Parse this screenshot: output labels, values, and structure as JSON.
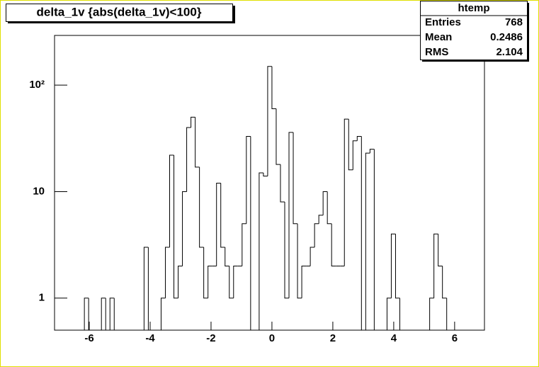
{
  "chart_data": {
    "type": "histogram",
    "title": "delta_1v {abs(delta_1v)<100}",
    "stats": {
      "title": "htemp",
      "rows": [
        [
          "Entries",
          "768"
        ],
        [
          "Mean",
          "0.2486"
        ],
        [
          "RMS",
          "2.104"
        ]
      ]
    },
    "bins": [
      -7.14,
      -7.0,
      -6.86,
      -6.72,
      -6.58,
      -6.44,
      -6.3,
      -6.16,
      -6.02,
      -5.88,
      -5.74,
      -5.6,
      -5.46,
      -5.32,
      -5.18,
      -5.04,
      -4.9,
      -4.76,
      -4.62,
      -4.48,
      -4.34,
      -4.2,
      -4.06,
      -3.92,
      -3.78,
      -3.64,
      -3.5,
      -3.36,
      -3.22,
      -3.08,
      -2.94,
      -2.8,
      -2.66,
      -2.52,
      -2.38,
      -2.24,
      -2.1,
      -1.96,
      -1.82,
      -1.68,
      -1.54,
      -1.4,
      -1.26,
      -1.12,
      -0.98,
      -0.84,
      -0.7,
      -0.56,
      -0.42,
      -0.28,
      -0.14,
      0,
      0.14,
      0.28,
      0.42,
      0.56,
      0.7,
      0.84,
      0.98,
      1.12,
      1.26,
      1.4,
      1.54,
      1.68,
      1.82,
      1.96,
      2.1,
      2.24,
      2.38,
      2.52,
      2.66,
      2.8,
      2.94,
      3.08,
      3.22,
      3.36,
      3.5,
      3.64,
      3.78,
      3.92,
      4.06,
      4.2,
      4.34,
      4.48,
      4.62,
      4.76,
      4.9,
      5.04,
      5.18,
      5.32,
      5.46,
      5.6,
      5.74,
      5.88,
      6.02,
      6.16,
      6.3,
      6.44,
      6.58,
      6.72,
      6.86
    ],
    "values": [
      0,
      0,
      0,
      0,
      0,
      0,
      0,
      1,
      0,
      0,
      0,
      1,
      0,
      1,
      0,
      0,
      0,
      0,
      0,
      0,
      0,
      3,
      0,
      0,
      0,
      1,
      3,
      22,
      1,
      2,
      10,
      40,
      50,
      17,
      3,
      1,
      2,
      2,
      12,
      3,
      2,
      1,
      2,
      2,
      5,
      33,
      0,
      0,
      15,
      14,
      150,
      60,
      18,
      8,
      1,
      36,
      5,
      1,
      2,
      2,
      3,
      5,
      6,
      10,
      5,
      2,
      2,
      2,
      48,
      16,
      30,
      33,
      0,
      23,
      25,
      0,
      0,
      0,
      1,
      4,
      1,
      0,
      0,
      0,
      0,
      0,
      0,
      0,
      1,
      4,
      2,
      1,
      0,
      0,
      0,
      0,
      0,
      0,
      0,
      0
    ],
    "color": "#000000",
    "xlim": [
      -7.14,
      6.98
    ],
    "xticks": [
      -6,
      -4,
      -2,
      0,
      2,
      4,
      6
    ],
    "ylim": [
      0.5,
      293
    ],
    "yticks": [
      1,
      10,
      {
        "value": 100,
        "label": "10²"
      }
    ],
    "log_y": true
  }
}
